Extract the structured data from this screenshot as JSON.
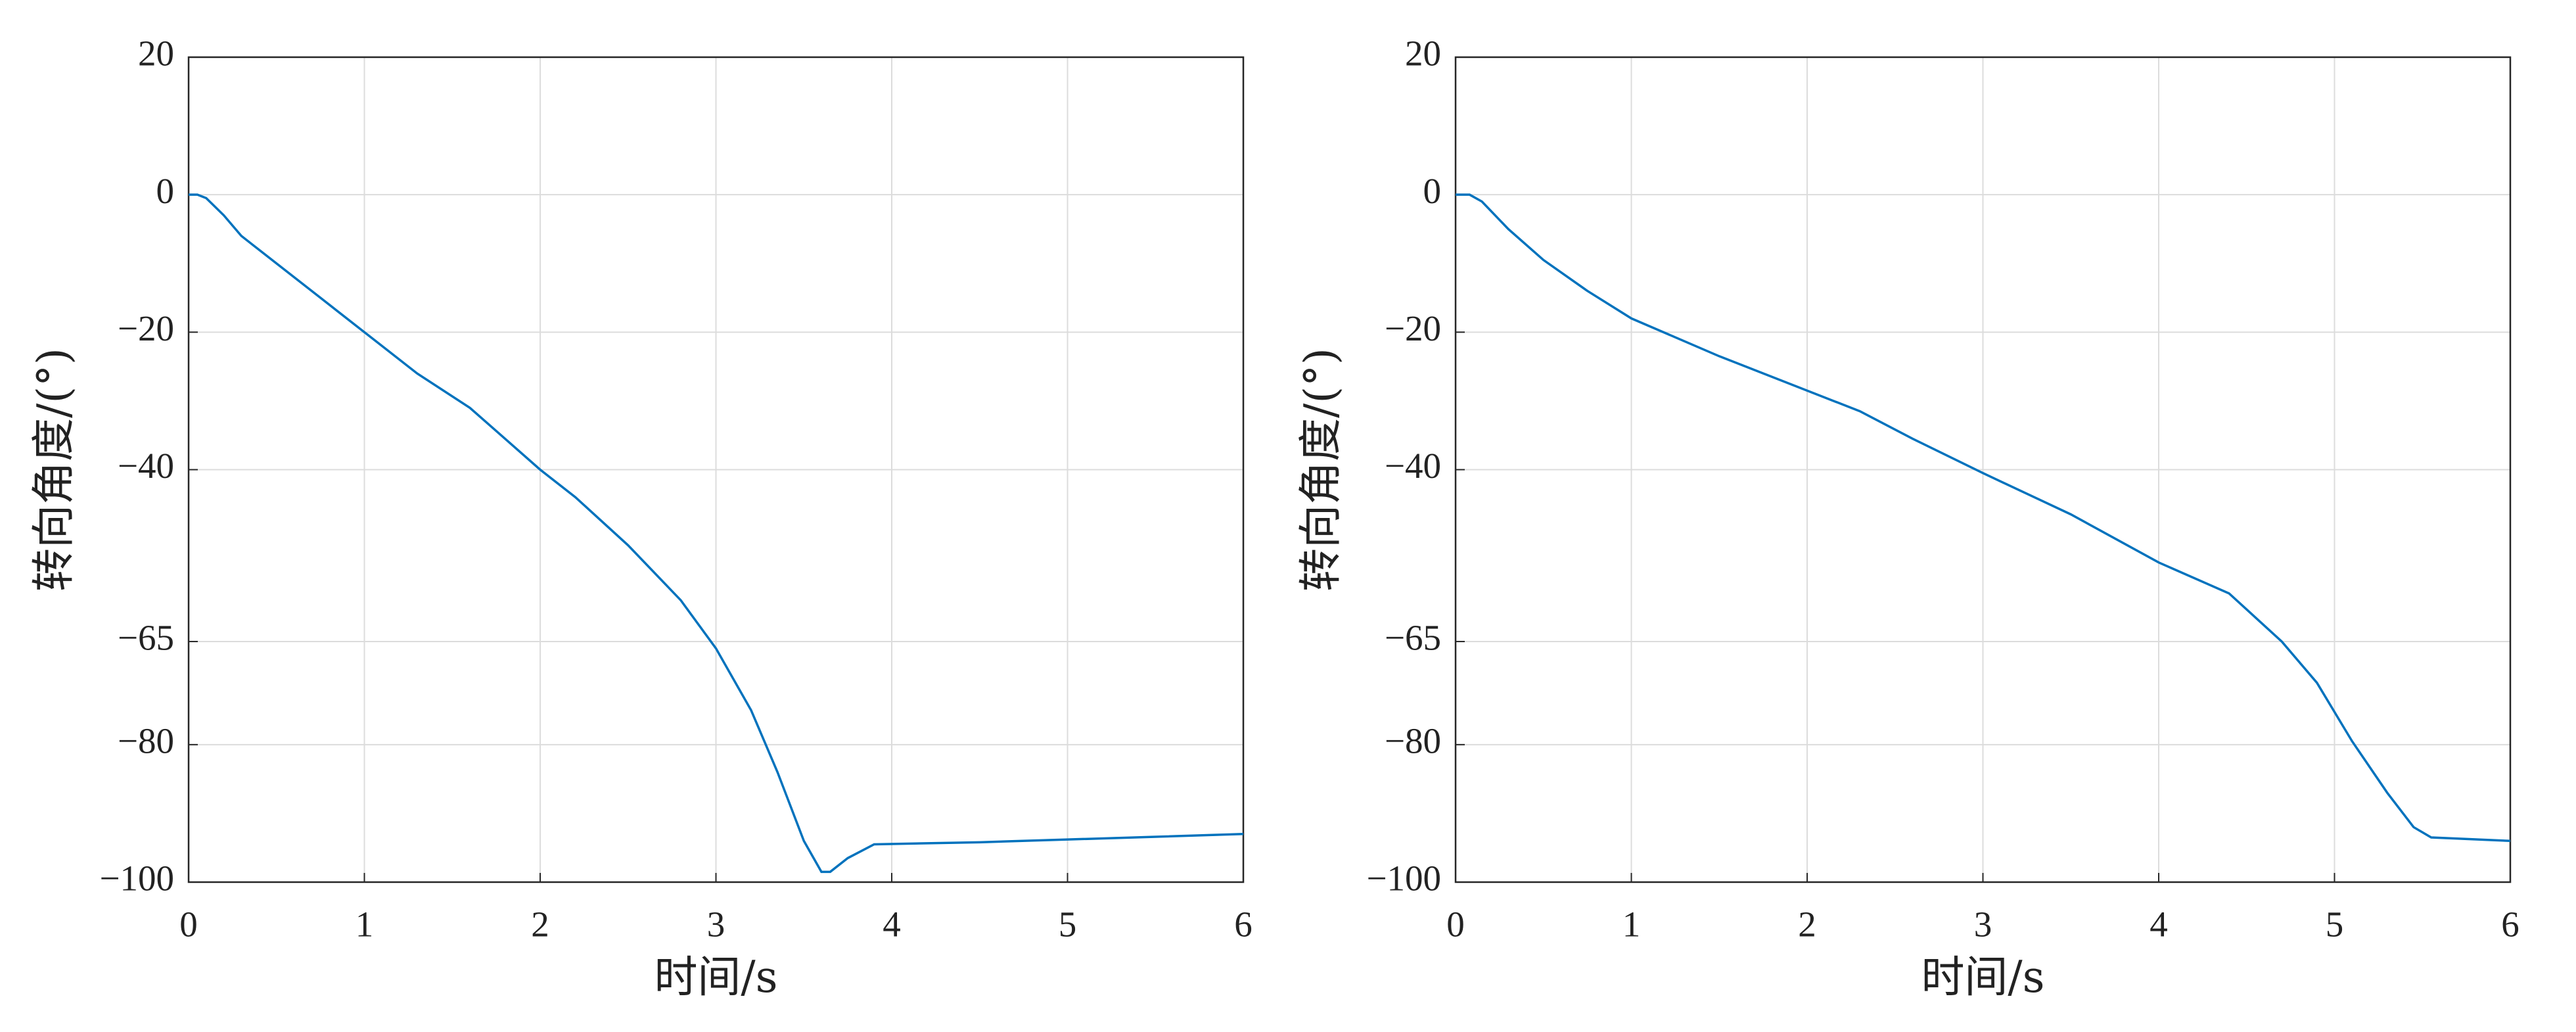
{
  "chart_data": [
    {
      "type": "line",
      "xlabel": "时间/s",
      "ylabel": "转向角度/(°)",
      "x": [
        0,
        0.05,
        0.1,
        0.2,
        0.3,
        0.5,
        0.75,
        1,
        1.3,
        1.6,
        2,
        2.2,
        2.5,
        2.8,
        3,
        3.2,
        3.35,
        3.5,
        3.6,
        3.65,
        3.75,
        3.9,
        4.5,
        5,
        6
      ],
      "series": [
        {
          "color": "#0072bd",
          "values": [
            0,
            0,
            -0.5,
            -3,
            -6,
            -10,
            -15,
            -20,
            -26,
            -31,
            -40,
            -44,
            -51,
            -59,
            -66,
            -75,
            -84,
            -94,
            -98.5,
            -98.5,
            -96.5,
            -94.5,
            -94.2,
            -93.8,
            -93
          ]
        }
      ],
      "xlim": [
        0,
        6
      ],
      "ylim": [
        -100,
        20
      ],
      "xticks": [
        0,
        1,
        2,
        3,
        4,
        5,
        6
      ],
      "yticks": [
        20,
        0,
        {
          "value": -20,
          "label": "−20"
        },
        {
          "value": -40,
          "label": "−40"
        },
        {
          "value": -65,
          "label": "−65"
        },
        {
          "value": -80,
          "label": "−80"
        },
        {
          "value": -100,
          "label": "−100"
        }
      ],
      "grid": true
    },
    {
      "type": "line",
      "xlabel": "时间/s",
      "ylabel": "转向角度/(°)",
      "x": [
        0,
        0.08,
        0.15,
        0.3,
        0.5,
        0.75,
        1,
        1.5,
        2,
        2.3,
        2.6,
        3,
        3.5,
        4,
        4.4,
        4.7,
        4.9,
        5.1,
        5.3,
        5.45,
        5.55,
        6
      ],
      "series": [
        {
          "color": "#0072bd",
          "values": [
            0,
            0,
            -1,
            -5,
            -9.5,
            -14,
            -18,
            -23.5,
            -28.5,
            -31.5,
            -35.5,
            -40.5,
            -46.5,
            -53.5,
            -58,
            -65,
            -71,
            -79.5,
            -87,
            -92,
            -93.5,
            -94
          ]
        }
      ],
      "xlim": [
        0,
        6
      ],
      "ylim": [
        -100,
        20
      ],
      "xticks": [
        0,
        1,
        2,
        3,
        4,
        5,
        6
      ],
      "yticks": [
        20,
        0,
        {
          "value": -20,
          "label": "−20"
        },
        {
          "value": -40,
          "label": "−40"
        },
        {
          "value": -65,
          "label": "−65"
        },
        {
          "value": -80,
          "label": "−80"
        },
        {
          "value": -100,
          "label": "−100"
        }
      ],
      "grid": true
    }
  ]
}
